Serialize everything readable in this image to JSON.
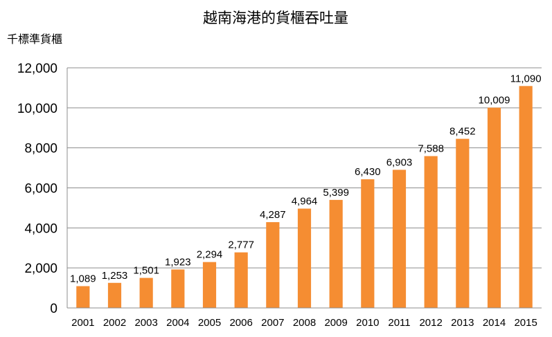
{
  "chart_data": {
    "type": "bar",
    "title": "越南海港的貨櫃吞吐量",
    "ylabel": "千標準貨櫃",
    "xlabel": "",
    "categories": [
      "2001",
      "2002",
      "2003",
      "2004",
      "2005",
      "2006",
      "2007",
      "2008",
      "2009",
      "2010",
      "2011",
      "2012",
      "2013",
      "2014",
      "2015"
    ],
    "values": [
      1089,
      1253,
      1501,
      1923,
      2294,
      2777,
      4287,
      4964,
      5399,
      6430,
      6903,
      7588,
      8452,
      10009,
      11090
    ],
    "value_labels": [
      "1,089",
      "1,253",
      "1,501",
      "1,923",
      "2,294",
      "2,777",
      "4,287",
      "4,964",
      "5,399",
      "6,430",
      "6,903",
      "7,588",
      "8,452",
      "10,009",
      "11,090"
    ],
    "ylim": [
      0,
      12000
    ],
    "yticks": [
      0,
      2000,
      4000,
      6000,
      8000,
      10000,
      12000
    ],
    "ytick_labels": [
      "0",
      "2,000",
      "4,000",
      "6,000",
      "8,000",
      "10,000",
      "12,000"
    ],
    "grid": true,
    "legend": "none",
    "bar_color": "#f58d32",
    "grid_color": "#8c8c8c"
  }
}
